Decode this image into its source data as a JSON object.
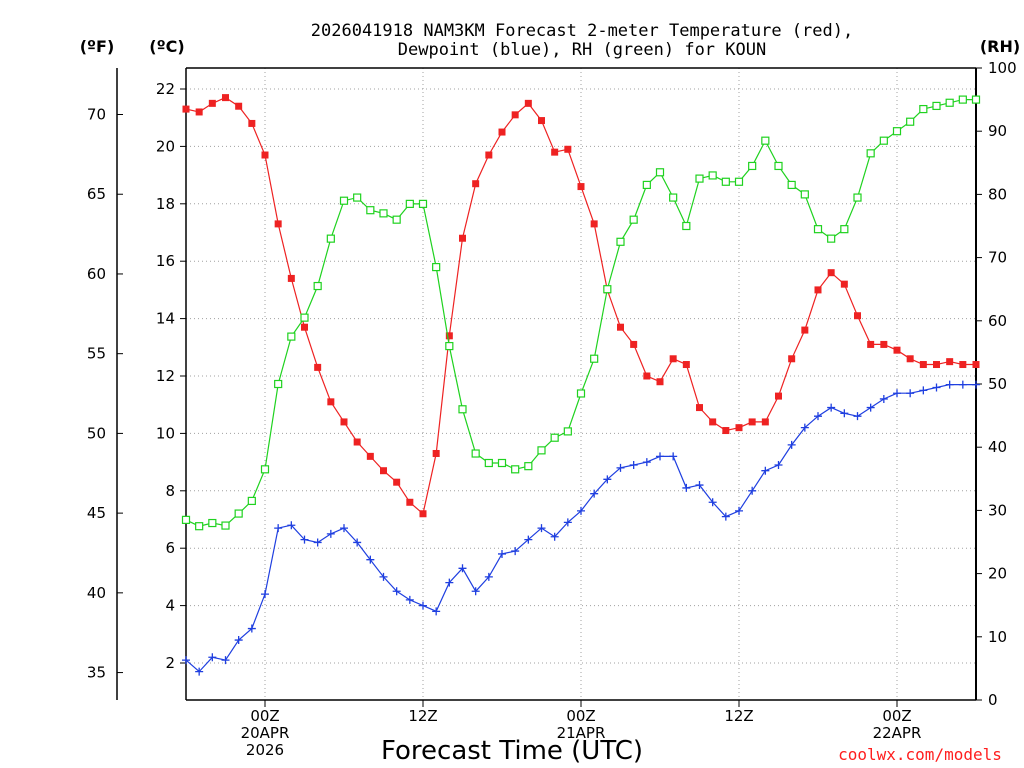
{
  "chart_data": {
    "type": "line",
    "title_lines": [
      "2026041918 NAM3KM Forecast 2-meter Temperature (red),",
      "Dewpoint (blue), RH (green) for KOUN"
    ],
    "xlabel": "Forecast Time (UTC)",
    "left_outer_unit": "(ºF)",
    "left_unit": "(ºC)",
    "right_unit": "(RH)",
    "credit": "coolwx.com/models",
    "x_range_hours": [
      0,
      60
    ],
    "y_celsius_range": [
      1.0,
      23.0
    ],
    "y_rh_range": [
      0,
      100
    ],
    "celsius_ticks": [
      2,
      4,
      6,
      8,
      10,
      12,
      14,
      16,
      18,
      20,
      22
    ],
    "fahrenheit_ticks": [
      35,
      40,
      45,
      50,
      55,
      60,
      65,
      70
    ],
    "rh_ticks": [
      0,
      10,
      20,
      30,
      40,
      50,
      60,
      70,
      80,
      90,
      100
    ],
    "x_ticks": [
      {
        "hour": 6,
        "lines": [
          "00Z",
          "20APR",
          "2026"
        ]
      },
      {
        "hour": 18,
        "lines": [
          "12Z"
        ]
      },
      {
        "hour": 30,
        "lines": [
          "00Z",
          "21APR"
        ]
      },
      {
        "hour": 42,
        "lines": [
          "12Z"
        ]
      },
      {
        "hour": 54,
        "lines": [
          "00Z",
          "22APR"
        ]
      }
    ],
    "series": [
      {
        "name": "Temperature",
        "units": "C",
        "color": "#ee2222",
        "marker": "filled-square",
        "values": [
          21.3,
          21.2,
          21.5,
          21.7,
          21.4,
          20.8,
          19.7,
          17.3,
          15.4,
          13.7,
          12.3,
          11.1,
          10.4,
          9.7,
          9.2,
          8.7,
          8.3,
          7.6,
          7.2,
          9.3,
          13.4,
          16.8,
          18.7,
          19.7,
          20.5,
          21.1,
          21.5,
          20.9,
          19.8,
          19.9,
          18.6,
          17.3,
          15.0,
          13.7,
          13.1,
          12.0,
          11.8,
          12.6,
          12.4,
          10.9,
          10.4,
          10.1,
          10.2,
          10.4,
          10.4,
          11.3,
          12.6,
          13.6,
          15.0,
          15.6,
          15.2,
          14.1,
          13.1,
          13.1,
          12.9,
          12.6,
          12.4,
          12.4,
          12.5,
          12.4,
          12.4
        ]
      },
      {
        "name": "Dewpoint",
        "units": "C",
        "color": "#1f3fe0",
        "marker": "plus",
        "values": [
          2.1,
          1.7,
          2.2,
          2.1,
          2.8,
          3.2,
          4.4,
          6.7,
          6.8,
          6.3,
          6.2,
          6.5,
          6.7,
          6.2,
          5.6,
          5.0,
          4.5,
          4.2,
          4.0,
          3.8,
          4.8,
          5.3,
          4.5,
          5.0,
          5.8,
          5.9,
          6.3,
          6.7,
          6.4,
          6.9,
          7.3,
          7.9,
          8.4,
          8.8,
          8.9,
          9.0,
          9.2,
          9.2,
          8.1,
          8.2,
          7.6,
          7.1,
          7.3,
          8.0,
          8.7,
          8.9,
          9.6,
          10.2,
          10.6,
          10.9,
          10.7,
          10.6,
          10.9,
          11.2,
          11.4,
          11.4,
          11.5,
          11.6,
          11.7,
          11.7,
          11.7
        ]
      },
      {
        "name": "RH",
        "units": "%",
        "color": "#1fd21f",
        "marker": "open-square",
        "values": [
          28.5,
          27.5,
          28.0,
          27.6,
          29.5,
          31.5,
          36.5,
          50.0,
          57.5,
          60.5,
          65.5,
          73.0,
          79.0,
          79.5,
          77.5,
          77.0,
          76.0,
          78.5,
          78.5,
          68.5,
          56.0,
          46.0,
          39.0,
          37.5,
          37.5,
          36.5,
          37.0,
          39.5,
          41.5,
          42.5,
          48.5,
          54.0,
          65.0,
          72.5,
          76.0,
          81.5,
          83.5,
          79.5,
          75.0,
          82.5,
          83.0,
          82.0,
          82.0,
          84.5,
          88.5,
          84.5,
          81.5,
          80.0,
          74.5,
          73.0,
          74.5,
          79.5,
          86.5,
          88.5,
          90.0,
          91.5,
          93.5,
          94.0,
          94.5,
          95.0,
          95.0
        ]
      }
    ]
  }
}
